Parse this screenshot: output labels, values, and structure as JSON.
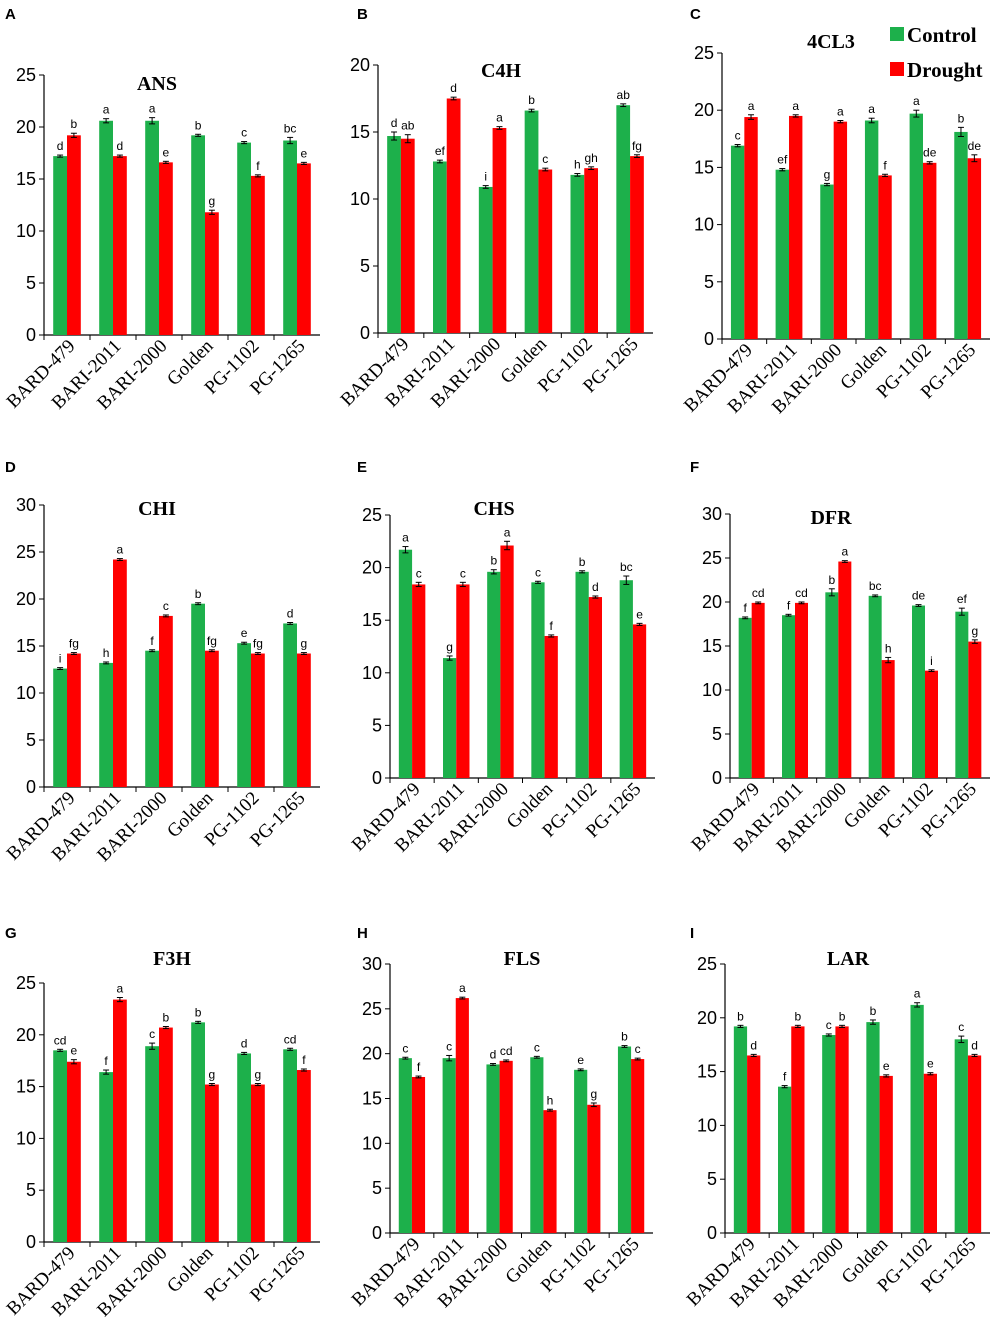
{
  "chart_data": {
    "type": "bar",
    "colors": {
      "Control": "#1db04b",
      "Drought": "#ff0000"
    },
    "legend": {
      "position": "top-right",
      "entries": [
        "Control",
        "Drought"
      ]
    },
    "categories": [
      "BARD-479",
      "BARI-2011",
      "BARI-2000",
      "Golden",
      "PG-1102",
      "PG-1265"
    ],
    "panels": [
      {
        "letter": "A",
        "title": "ANS",
        "ylim": [
          0,
          25
        ],
        "yticks": [
          0,
          5,
          10,
          15,
          20,
          25
        ],
        "control": [
          17.2,
          20.6,
          20.6,
          19.2,
          18.5,
          18.7
        ],
        "drought": [
          19.2,
          17.2,
          16.6,
          11.8,
          15.3,
          16.5
        ],
        "control_err": [
          0.1,
          0.2,
          0.3,
          0.1,
          0.1,
          0.3
        ],
        "drought_err": [
          0.2,
          0.1,
          0.1,
          0.2,
          0.1,
          0.1
        ],
        "control_sig": [
          "d",
          "a",
          "a",
          "b",
          "c",
          "bc"
        ],
        "drought_sig": [
          "b",
          "d",
          "e",
          "g",
          "f",
          "e"
        ]
      },
      {
        "letter": "B",
        "title": "C4H",
        "ylim": [
          0,
          20
        ],
        "yticks": [
          0,
          5,
          10,
          15,
          20
        ],
        "control": [
          14.7,
          12.8,
          10.9,
          16.6,
          11.8,
          17.0
        ],
        "drought": [
          14.5,
          17.5,
          15.3,
          12.2,
          12.3,
          13.2
        ],
        "control_err": [
          0.3,
          0.1,
          0.1,
          0.1,
          0.1,
          0.1
        ],
        "drought_err": [
          0.3,
          0.1,
          0.1,
          0.1,
          0.1,
          0.1
        ],
        "control_sig": [
          "d",
          "ef",
          "i",
          "b",
          "h",
          "ab"
        ],
        "drought_sig": [
          "ab",
          "d",
          "a",
          "c",
          "gh",
          "fg"
        ]
      },
      {
        "letter": "C",
        "title": "4CL3",
        "ylim": [
          0,
          25
        ],
        "yticks": [
          0,
          5,
          10,
          15,
          20,
          25
        ],
        "control": [
          16.9,
          14.8,
          13.5,
          19.1,
          19.7,
          18.1
        ],
        "drought": [
          19.4,
          19.5,
          19.0,
          14.3,
          15.4,
          15.8
        ],
        "control_err": [
          0.1,
          0.1,
          0.1,
          0.2,
          0.3,
          0.4
        ],
        "drought_err": [
          0.2,
          0.1,
          0.1,
          0.1,
          0.1,
          0.3
        ],
        "control_sig": [
          "c",
          "ef",
          "g",
          "a",
          "a",
          "b"
        ],
        "drought_sig": [
          "a",
          "a",
          "a",
          "f",
          "de",
          "de"
        ]
      },
      {
        "letter": "D",
        "title": "CHI",
        "ylim": [
          0,
          30
        ],
        "yticks": [
          0,
          5,
          10,
          15,
          20,
          25,
          30
        ],
        "control": [
          12.6,
          13.2,
          14.5,
          19.5,
          15.3,
          17.4
        ],
        "drought": [
          14.2,
          24.2,
          18.2,
          14.5,
          14.2,
          14.2
        ],
        "control_err": [
          0.1,
          0.1,
          0.1,
          0.1,
          0.1,
          0.1
        ],
        "drought_err": [
          0.1,
          0.1,
          0.1,
          0.1,
          0.1,
          0.1
        ],
        "control_sig": [
          "i",
          "h",
          "f",
          "b",
          "e",
          "d"
        ],
        "drought_sig": [
          "fg",
          "a",
          "c",
          "fg",
          "fg",
          "g"
        ]
      },
      {
        "letter": "E",
        "title": "CHS",
        "ylim": [
          0,
          25
        ],
        "yticks": [
          0,
          5,
          10,
          15,
          20,
          25
        ],
        "control": [
          21.7,
          11.4,
          19.6,
          18.6,
          19.6,
          18.8
        ],
        "drought": [
          18.4,
          18.4,
          22.1,
          13.5,
          17.2,
          14.6
        ],
        "control_err": [
          0.3,
          0.2,
          0.2,
          0.1,
          0.1,
          0.4
        ],
        "drought_err": [
          0.2,
          0.2,
          0.4,
          0.1,
          0.1,
          0.1
        ],
        "control_sig": [
          "a",
          "g",
          "b",
          "c",
          "b",
          "bc"
        ],
        "drought_sig": [
          "c",
          "c",
          "a",
          "f",
          "d",
          "e"
        ]
      },
      {
        "letter": "F",
        "title": "DFR",
        "ylim": [
          0,
          30
        ],
        "yticks": [
          0,
          5,
          10,
          15,
          20,
          25,
          30
        ],
        "control": [
          18.2,
          18.5,
          21.1,
          20.7,
          19.6,
          18.9
        ],
        "drought": [
          19.9,
          19.9,
          24.6,
          13.4,
          12.2,
          15.5
        ],
        "control_err": [
          0.1,
          0.1,
          0.4,
          0.1,
          0.1,
          0.4
        ],
        "drought_err": [
          0.1,
          0.1,
          0.1,
          0.3,
          0.1,
          0.2
        ],
        "control_sig": [
          "f",
          "f",
          "b",
          "bc",
          "de",
          "ef"
        ],
        "drought_sig": [
          "cd",
          "cd",
          "a",
          "h",
          "i",
          "g"
        ]
      },
      {
        "letter": "G",
        "title": "F3H",
        "ylim": [
          0,
          25
        ],
        "yticks": [
          0,
          5,
          10,
          15,
          20,
          25
        ],
        "control": [
          18.5,
          16.4,
          18.9,
          21.2,
          18.2,
          18.6
        ],
        "drought": [
          17.4,
          23.4,
          20.7,
          15.2,
          15.2,
          16.6
        ],
        "control_err": [
          0.1,
          0.2,
          0.3,
          0.1,
          0.1,
          0.1
        ],
        "drought_err": [
          0.2,
          0.2,
          0.1,
          0.1,
          0.1,
          0.1
        ],
        "control_sig": [
          "cd",
          "f",
          "c",
          "b",
          "d",
          "cd"
        ],
        "drought_sig": [
          "e",
          "a",
          "b",
          "g",
          "g",
          "f"
        ]
      },
      {
        "letter": "H",
        "title": "FLS",
        "ylim": [
          0,
          30
        ],
        "yticks": [
          0,
          5,
          10,
          15,
          20,
          25,
          30
        ],
        "control": [
          19.5,
          19.5,
          18.8,
          19.6,
          18.2,
          20.8
        ],
        "drought": [
          17.4,
          26.2,
          19.2,
          13.7,
          14.3,
          19.4
        ],
        "control_err": [
          0.1,
          0.3,
          0.1,
          0.1,
          0.1,
          0.1
        ],
        "drought_err": [
          0.1,
          0.1,
          0.1,
          0.1,
          0.2,
          0.1
        ],
        "control_sig": [
          "c",
          "c",
          "d",
          "c",
          "e",
          "b"
        ],
        "drought_sig": [
          "f",
          "a",
          "cd",
          "h",
          "g",
          "c"
        ]
      },
      {
        "letter": "I",
        "title": "LAR",
        "ylim": [
          0,
          25
        ],
        "yticks": [
          0,
          5,
          10,
          15,
          20,
          25
        ],
        "control": [
          19.2,
          13.6,
          18.4,
          19.6,
          21.2,
          18.0
        ],
        "drought": [
          16.5,
          19.2,
          19.2,
          14.6,
          14.8,
          16.5
        ],
        "control_err": [
          0.1,
          0.1,
          0.1,
          0.2,
          0.2,
          0.3
        ],
        "drought_err": [
          0.1,
          0.1,
          0.1,
          0.1,
          0.1,
          0.1
        ],
        "control_sig": [
          "b",
          "f",
          "c",
          "b",
          "a",
          "c"
        ],
        "drought_sig": [
          "d",
          "b",
          "b",
          "e",
          "e",
          "d"
        ]
      }
    ]
  }
}
